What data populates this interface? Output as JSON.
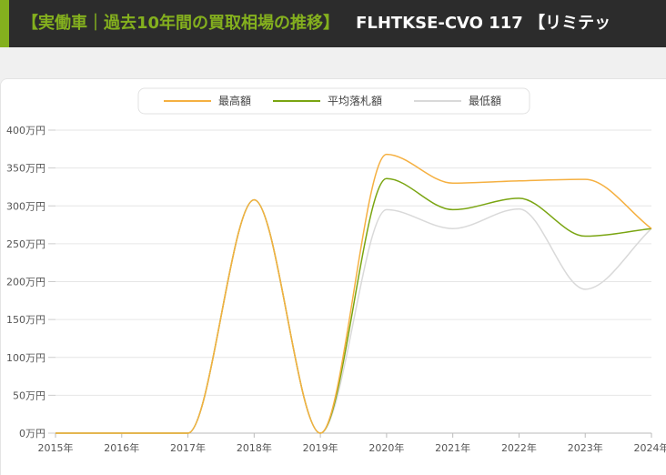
{
  "header": {
    "title_accent": "【実働車｜過去10年間の買取相場の推移】",
    "title_main": "FLHTKSE-CVO 117 【リミテッ"
  },
  "chart_data": {
    "type": "line",
    "title": "",
    "xlabel": "",
    "ylabel": "",
    "categories": [
      "2015年",
      "2016年",
      "2017年",
      "2018年",
      "2019年",
      "2020年",
      "2021年",
      "2022年",
      "2023年",
      "2024年"
    ],
    "y_tick_labels": [
      "0万円",
      "50万円",
      "100万円",
      "150万円",
      "200万円",
      "250万円",
      "300万円",
      "350万円",
      "400万円"
    ],
    "y_ticks": [
      0,
      50,
      100,
      150,
      200,
      250,
      300,
      350,
      400
    ],
    "ylim": [
      0,
      400
    ],
    "grid": true,
    "legend_position": "top-center",
    "series": [
      {
        "name": "最高額",
        "color": "#f5b041",
        "values": [
          0,
          0,
          0,
          308,
          0,
          368,
          330,
          333,
          335,
          270
        ]
      },
      {
        "name": "平均落札額",
        "color": "#7aa512",
        "values": [
          0,
          0,
          0,
          308,
          0,
          336,
          295,
          310,
          260,
          270
        ]
      },
      {
        "name": "最低額",
        "color": "#d9d9d9",
        "values": [
          0,
          0,
          0,
          308,
          0,
          295,
          270,
          296,
          190,
          270
        ]
      }
    ]
  }
}
